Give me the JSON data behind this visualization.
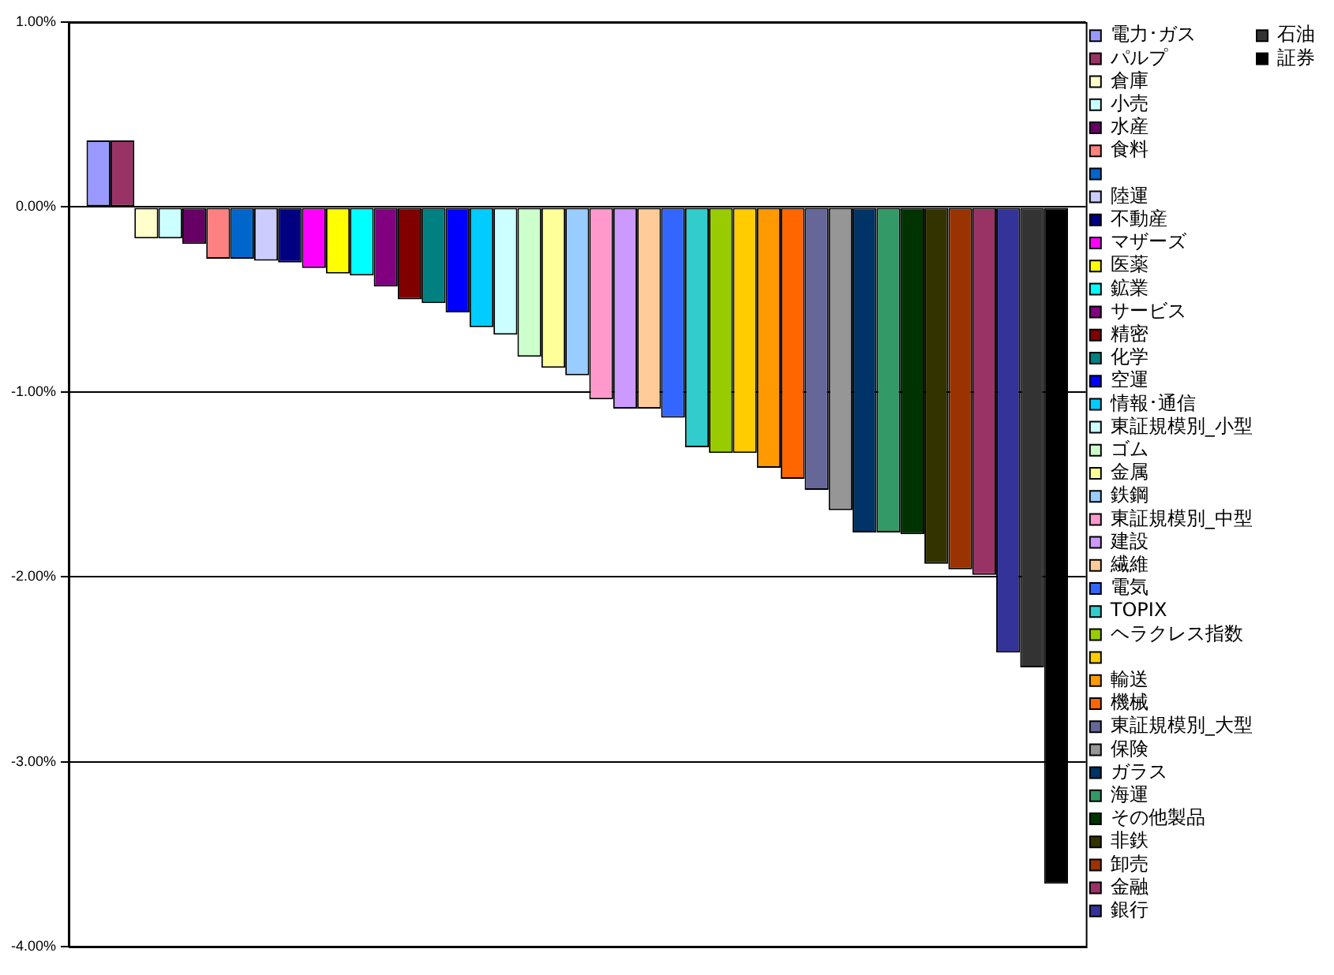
{
  "chart_data": {
    "type": "bar",
    "categories": [
      null
    ],
    "ylim": [
      -4,
      1
    ],
    "yticks": [
      {
        "value": -4,
        "label": "-4.00%"
      },
      {
        "value": -3,
        "label": "-3.00%"
      },
      {
        "value": -2,
        "label": "-2.00%"
      },
      {
        "value": -1,
        "label": "-1.00%"
      },
      {
        "value": 0,
        "label": "0.00%"
      },
      {
        "value": 1,
        "label": "1.00%"
      }
    ],
    "grid": "y",
    "legend": "right",
    "tick_labels": "y",
    "series": [
      {
        "name": "電力･ガス",
        "color": "#9999ff",
        "values": [
          0.36
        ]
      },
      {
        "name": "パルプ",
        "color": "#993366",
        "values": [
          0.36
        ]
      },
      {
        "name": "倉庫",
        "color": "#ffffcc",
        "values": [
          -0.17
        ]
      },
      {
        "name": "小売",
        "color": "#ccffff",
        "values": [
          -0.17
        ]
      },
      {
        "name": "水産",
        "color": "#660066",
        "values": [
          -0.2
        ]
      },
      {
        "name": "食料",
        "color": "#ff8080",
        "values": [
          -0.28
        ]
      },
      {
        "color": "#0066cc",
        "values": [
          -0.28
        ]
      },
      {
        "name": "陸運",
        "color": "#ccccff",
        "values": [
          -0.29
        ]
      },
      {
        "name": "不動産",
        "color": "#000080",
        "values": [
          -0.3
        ]
      },
      {
        "name": "マザーズ",
        "color": "#ff00ff",
        "values": [
          -0.33
        ]
      },
      {
        "name": "医薬",
        "color": "#ffff00",
        "values": [
          -0.36
        ]
      },
      {
        "name": "鉱業",
        "color": "#00ffff",
        "values": [
          -0.37
        ]
      },
      {
        "name": "サービス",
        "color": "#800080",
        "values": [
          -0.43
        ]
      },
      {
        "name": "精密",
        "color": "#800000",
        "values": [
          -0.5
        ]
      },
      {
        "name": "化学",
        "color": "#008080",
        "values": [
          -0.52
        ]
      },
      {
        "name": "空運",
        "color": "#0000ff",
        "values": [
          -0.57
        ]
      },
      {
        "name": "情報･通信",
        "color": "#00ccff",
        "values": [
          -0.65
        ]
      },
      {
        "name": "東証規模別_小型",
        "color": "#ccffff",
        "values": [
          -0.69
        ]
      },
      {
        "name": "ゴム",
        "color": "#ccffcc",
        "values": [
          -0.81
        ]
      },
      {
        "name": "金属",
        "color": "#ffff99",
        "values": [
          -0.87
        ]
      },
      {
        "name": "鉄鋼",
        "color": "#99ccff",
        "values": [
          -0.91
        ]
      },
      {
        "name": "東証規模別_中型",
        "color": "#ff99cc",
        "values": [
          -1.04
        ]
      },
      {
        "name": "建設",
        "color": "#cc99ff",
        "values": [
          -1.09
        ]
      },
      {
        "name": "繊維",
        "color": "#ffcc99",
        "values": [
          -1.09
        ]
      },
      {
        "name": "電気",
        "color": "#3366ff",
        "values": [
          -1.14
        ]
      },
      {
        "name": "TOPIX",
        "color": "#33cccc",
        "values": [
          -1.3
        ]
      },
      {
        "name": "ヘラクレス指数",
        "color": "#99cc00",
        "values": [
          -1.33
        ]
      },
      {
        "color": "#ffcc00",
        "values": [
          -1.33
        ]
      },
      {
        "name": "輸送",
        "color": "#ff9900",
        "values": [
          -1.41
        ]
      },
      {
        "name": "機械",
        "color": "#ff6600",
        "values": [
          -1.47
        ]
      },
      {
        "name": "東証規模別_大型",
        "color": "#666699",
        "values": [
          -1.53
        ]
      },
      {
        "name": "保険",
        "color": "#969696",
        "values": [
          -1.64
        ]
      },
      {
        "name": "ガラス",
        "color": "#003366",
        "values": [
          -1.76
        ]
      },
      {
        "name": "海運",
        "color": "#339966",
        "values": [
          -1.76
        ]
      },
      {
        "name": "その他製品",
        "color": "#003300",
        "values": [
          -1.77
        ]
      },
      {
        "name": "非鉄",
        "color": "#333300",
        "values": [
          -1.93
        ]
      },
      {
        "name": "卸売",
        "color": "#993300",
        "values": [
          -1.96
        ]
      },
      {
        "name": "金融",
        "color": "#993366",
        "values": [
          -1.99
        ]
      },
      {
        "name": "銀行",
        "color": "#333399",
        "values": [
          -2.41
        ]
      },
      {
        "name": "石油",
        "color": "#333333",
        "values": [
          -2.49
        ]
      },
      {
        "name": "証券",
        "color": "#000000",
        "values": [
          -3.66
        ]
      }
    ]
  }
}
